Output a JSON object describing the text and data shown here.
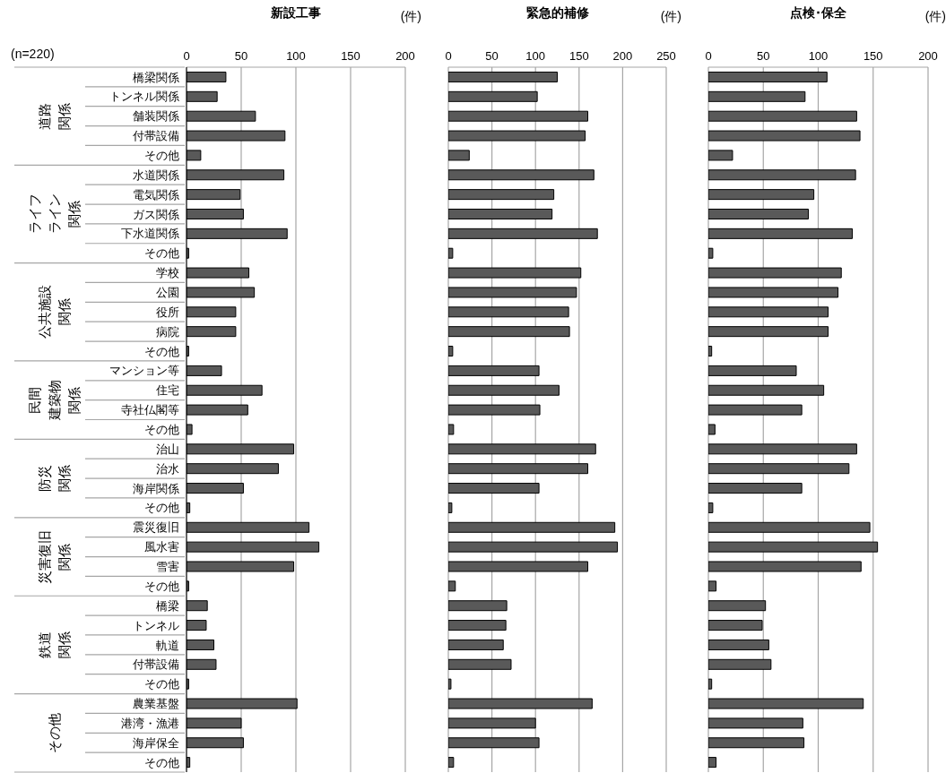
{
  "chart_data": [
    {
      "type": "bar",
      "orientation": "horizontal",
      "title": "新設工事",
      "xlabel": "(件)",
      "categories": [
        "橋梁関係",
        "トンネル関係",
        "舗装関係",
        "付帯設備",
        "その他",
        "水道関係",
        "電気関係",
        "ガス関係",
        "下水道関係",
        "その他",
        "学校",
        "公園",
        "役所",
        "病院",
        "その他",
        "マンション等",
        "住宅",
        "寺社仏閣等",
        "その他",
        "治山",
        "治水",
        "海岸関係",
        "その他",
        "震災復旧",
        "風水害",
        "雪害",
        "その他",
        "橋梁",
        "トンネル",
        "軌道",
        "付帯設備",
        "その他",
        "農業基盤",
        "港湾・漁港",
        "海岸保全",
        "その他"
      ],
      "values": [
        36,
        28,
        63,
        90,
        13,
        89,
        49,
        52,
        92,
        2,
        57,
        62,
        45,
        45,
        2,
        32,
        69,
        56,
        5,
        98,
        84,
        52,
        3,
        112,
        121,
        98,
        2,
        19,
        18,
        25,
        27,
        2,
        101,
        50,
        52,
        3
      ],
      "color": "#595959",
      "xlim": [
        0,
        200
      ],
      "xticks": [
        0,
        50,
        100,
        150,
        200
      ],
      "grid": "x",
      "annotations": [
        "(n=220)",
        "道路関係",
        "ライフライン関係",
        "公共施設関係",
        "民間建築物関係",
        "防災関係",
        "災害復旧関係",
        "鉄道関係",
        "その他"
      ]
    },
    {
      "type": "bar",
      "orientation": "horizontal",
      "title": "緊急的補修",
      "xlabel": "(件)",
      "tick_labels": "x",
      "categories": [
        null,
        null,
        null,
        null,
        null,
        null,
        null,
        null,
        null,
        null,
        null,
        null,
        null,
        null,
        null,
        null,
        null,
        null,
        null,
        null,
        null,
        null,
        null,
        null,
        null,
        null,
        null,
        null,
        null,
        null,
        null,
        null,
        null,
        null,
        null,
        null
      ],
      "values": [
        125,
        102,
        160,
        157,
        24,
        167,
        121,
        119,
        171,
        5,
        152,
        147,
        138,
        139,
        5,
        104,
        127,
        105,
        6,
        169,
        160,
        104,
        4,
        191,
        194,
        160,
        8,
        67,
        66,
        63,
        72,
        3,
        165,
        100,
        104,
        6
      ],
      "color": "#595959",
      "xlim": [
        0,
        250
      ],
      "xticks": [
        0,
        50,
        100,
        150,
        200,
        250
      ],
      "grid": "x"
    },
    {
      "type": "bar",
      "orientation": "horizontal",
      "title": "点検･保全",
      "xlabel": "(件)",
      "tick_labels": "x",
      "categories": [
        null,
        null,
        null,
        null,
        null,
        null,
        null,
        null,
        null,
        null,
        null,
        null,
        null,
        null,
        null,
        null,
        null,
        null,
        null,
        null,
        null,
        null,
        null,
        null,
        null,
        null,
        null,
        null,
        null,
        null,
        null,
        null,
        null,
        null,
        null,
        null
      ],
      "values": [
        108,
        88,
        135,
        138,
        22,
        134,
        96,
        91,
        131,
        4,
        121,
        118,
        109,
        109,
        3,
        80,
        105,
        85,
        6,
        135,
        128,
        85,
        4,
        147,
        154,
        139,
        7,
        52,
        49,
        55,
        57,
        3,
        141,
        86,
        87,
        7
      ],
      "color": "#595959",
      "xlim": [
        0,
        200
      ],
      "xticks": [
        0,
        50,
        100,
        150,
        200
      ],
      "grid": "x"
    }
  ]
}
